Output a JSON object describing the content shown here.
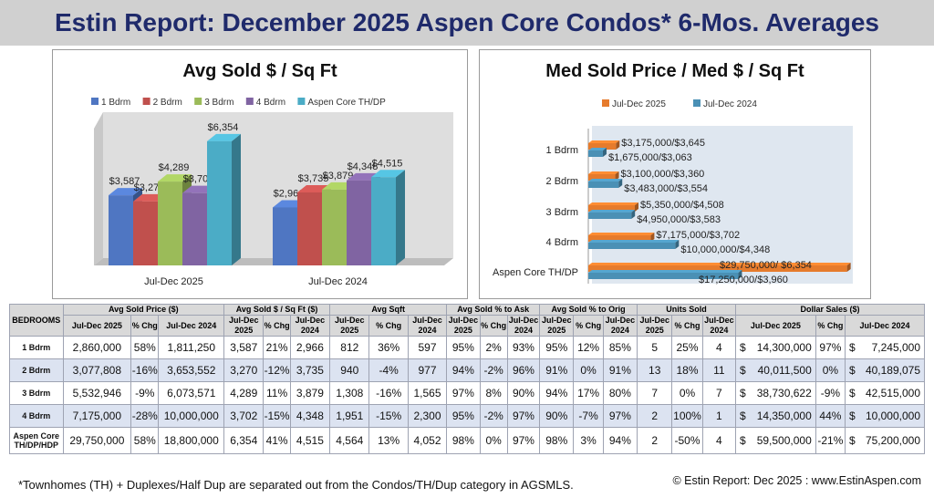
{
  "page": {
    "title": "Estin Report:  December 2025 Aspen Core Condos* 6-Mos. Averages",
    "footnote": "*Townhomes (TH) + Duplexes/Half Dup are separated out from the Condos/TH/Dup category in AGSMLS.",
    "credit": "© Estin Report: Dec 2025 : www.EstinAspen.com"
  },
  "chart_data": [
    {
      "type": "bar",
      "title": "Avg Sold $ / Sq Ft",
      "categories": [
        "Jul-Dec 2025",
        "Jul-Dec 2024"
      ],
      "series": [
        {
          "name": "1 Bdrm",
          "values": [
            3587,
            2966
          ],
          "labels": [
            "$3,587",
            "$2,966"
          ],
          "color": "#4f76c2"
        },
        {
          "name": "2 Bdrm",
          "values": [
            3270,
            3735
          ],
          "labels": [
            "$3,270",
            "$3,735"
          ],
          "color": "#c0504d"
        },
        {
          "name": "3 Bdrm",
          "values": [
            4289,
            3879
          ],
          "labels": [
            "$4,289",
            "$3,879"
          ],
          "color": "#9bbb59"
        },
        {
          "name": "4 Bdrm",
          "values": [
            3702,
            4348
          ],
          "labels": [
            "$3,702",
            "$4,348"
          ],
          "color": "#8064a2"
        },
        {
          "name": "Aspen Core TH/DP",
          "values": [
            6354,
            4515
          ],
          "labels": [
            "$6,354",
            "$4,515"
          ],
          "color": "#4bacc6"
        }
      ],
      "ylim": [
        0,
        7000
      ],
      "legend": "top",
      "grid": false
    },
    {
      "type": "bar",
      "orientation": "horizontal",
      "title": "Med Sold Price / Med $ / Sq Ft",
      "categories": [
        "1 Bdrm",
        "2 Bdrm",
        "3 Bdrm",
        "4 Bdrm",
        "Aspen Core TH/DP"
      ],
      "series": [
        {
          "name": "Jul-Dec 2025",
          "values": [
            3175000,
            3100000,
            5350000,
            7175000,
            29750000
          ],
          "labels": [
            "$3,175,000/$3,645",
            "$3,100,000/$3,360",
            "$5,350,000/$4,508",
            "$7,175,000/$3,702",
            "$29,750,000/ $6,354"
          ],
          "color": "#e67b2c"
        },
        {
          "name": "Jul-Dec 2024",
          "values": [
            1675000,
            3483000,
            4950000,
            10000000,
            17250000
          ],
          "labels": [
            "$1,675,000/$3,063",
            "$3,483,000/$3,554",
            "$4,950,000/$3,583",
            "$10,000,000/$4,348",
            "$17,250,000/$3,960"
          ],
          "color": "#4a90b5"
        }
      ],
      "xlim": [
        0,
        30000000
      ],
      "legend": "top",
      "grid": false
    }
  ],
  "table": {
    "bedrooms_header": "BEDROOMS",
    "groups": [
      "Avg Sold Price ($)",
      "Avg Sold $ / Sq Ft ($)",
      "Avg Sqft",
      "Avg Sold % to Ask",
      "Avg Sold % to Orig",
      "Units Sold",
      "Dollar Sales ($)"
    ],
    "subheaders": [
      "Jul-Dec 2025",
      "% Chg",
      "Jul-Dec 2024",
      "Jul-Dec 2025",
      "% Chg",
      "Jul-Dec 2024",
      "Jul-Dec 2025",
      "% Chg",
      "Jul-Dec 2024",
      "Jul-Dec 2025",
      "% Chg",
      "Jul-Dec 2024",
      "Jul-Dec 2025",
      "% Chg",
      "Jul-Dec 2024",
      "Jul-Dec 2025",
      "% Chg",
      "Jul-Dec 2024",
      "Jul-Dec 2025",
      "% Chg",
      "Jul-Dec 2024"
    ],
    "rows": [
      {
        "label": "1 Bdrm",
        "cells": [
          "2,860,000",
          "58%",
          "1,811,250",
          "3,587",
          "21%",
          "2,966",
          "812",
          "36%",
          "597",
          "95%",
          "2%",
          "93%",
          "95%",
          "12%",
          "85%",
          "5",
          "25%",
          "4",
          "14,300,000",
          "97%",
          "7,245,000"
        ]
      },
      {
        "label": "2 Bdrm",
        "cells": [
          "3,077,808",
          "-16%",
          "3,653,552",
          "3,270",
          "-12%",
          "3,735",
          "940",
          "-4%",
          "977",
          "94%",
          "-2%",
          "96%",
          "91%",
          "0%",
          "91%",
          "13",
          "18%",
          "11",
          "40,011,500",
          "0%",
          "40,189,075"
        ]
      },
      {
        "label": "3 Bdrm",
        "cells": [
          "5,532,946",
          "-9%",
          "6,073,571",
          "4,289",
          "11%",
          "3,879",
          "1,308",
          "-16%",
          "1,565",
          "97%",
          "8%",
          "90%",
          "94%",
          "17%",
          "80%",
          "7",
          "0%",
          "7",
          "38,730,622",
          "-9%",
          "42,515,000"
        ]
      },
      {
        "label": "4 Bdrm",
        "cells": [
          "7,175,000",
          "-28%",
          "10,000,000",
          "3,702",
          "-15%",
          "4,348",
          "1,951",
          "-15%",
          "2,300",
          "95%",
          "-2%",
          "97%",
          "90%",
          "-7%",
          "97%",
          "2",
          "100%",
          "1",
          "14,350,000",
          "44%",
          "10,000,000"
        ]
      },
      {
        "label": "Aspen Core TH/DP/HDP",
        "cells": [
          "29,750,000",
          "58%",
          "18,800,000",
          "6,354",
          "41%",
          "4,515",
          "4,564",
          "13%",
          "4,052",
          "98%",
          "0%",
          "97%",
          "98%",
          "3%",
          "94%",
          "2",
          "-50%",
          "4",
          "59,500,000",
          "-21%",
          "75,200,000"
        ]
      }
    ],
    "currency_symbol": "$"
  }
}
